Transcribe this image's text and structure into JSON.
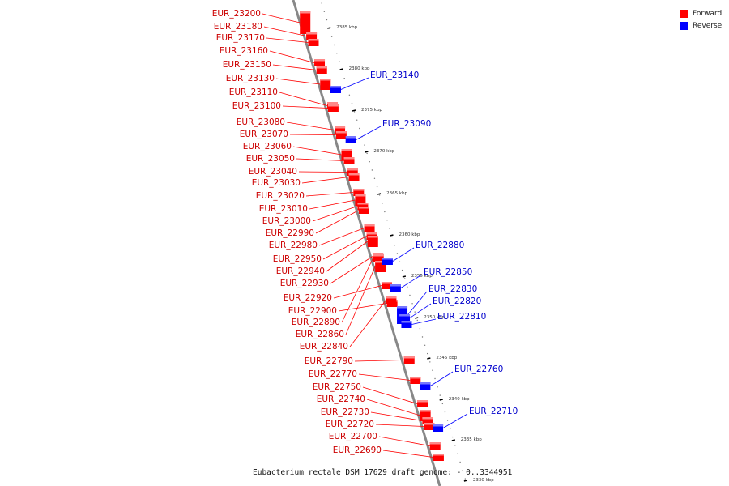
{
  "caption": "Eubacterium rectale DSM 17629 draft genome: - 0..3344951",
  "legend": [
    {
      "label": "Forward",
      "color": "#ff0000"
    },
    {
      "label": "Reverse",
      "color": "#0000ff"
    }
  ],
  "colors": {
    "forward": "#ff0000",
    "reverse": "#0000ff",
    "backbone": "#888888"
  },
  "ticks": [
    "2385 kbp",
    "2380 kbp",
    "2375 kbp",
    "2370 kbp",
    "2365 kbp",
    "2360 kbp",
    "2355 kbp",
    "2350 kbp",
    "2345 kbp",
    "2340 kbp",
    "2335 kbp",
    "2330 kbp"
  ],
  "forward_genes": [
    "EUR_23200",
    "EUR_23180",
    "EUR_23170",
    "EUR_23160",
    "EUR_23150",
    "EUR_23130",
    "EUR_23110",
    "EUR_23100",
    "EUR_23080",
    "EUR_23070",
    "EUR_23060",
    "EUR_23050",
    "EUR_23040",
    "EUR_23030",
    "EUR_23020",
    "EUR_23010",
    "EUR_23000",
    "EUR_22990",
    "EUR_22980",
    "EUR_22950",
    "EUR_22940",
    "EUR_22930",
    "EUR_22920",
    "EUR_22900",
    "EUR_22890",
    "EUR_22860",
    "EUR_22840",
    "EUR_22790",
    "EUR_22770",
    "EUR_22750",
    "EUR_22740",
    "EUR_22730",
    "EUR_22720",
    "EUR_22700",
    "EUR_22690"
  ],
  "reverse_genes": [
    "EUR_23140",
    "EUR_23090",
    "EUR_22880",
    "EUR_22850",
    "EUR_22830",
    "EUR_22820",
    "EUR_22810",
    "EUR_22760",
    "EUR_22710"
  ]
}
